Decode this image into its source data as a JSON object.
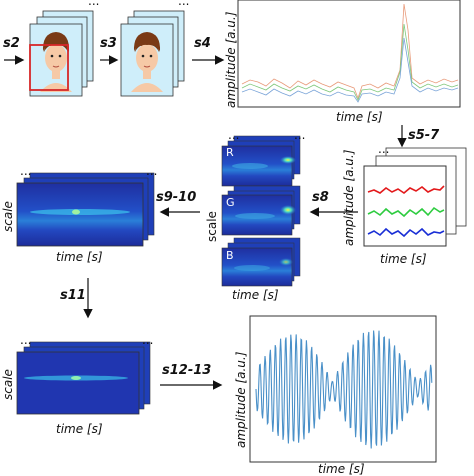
{
  "steps": {
    "s2": "s2",
    "s3": "s3",
    "s4": "s4",
    "s5_7": "s5-7",
    "s8": "s8",
    "s9_10": "s9-10",
    "s11": "s11",
    "s12_13": "s12-13"
  },
  "labels": {
    "amplitude": "amplitude [a.u.]",
    "time": "time [s]",
    "scale": "scale",
    "ellipsis": "...",
    "channels": [
      "R",
      "G",
      "B"
    ]
  },
  "colors": {
    "frame_bg": "#cfeefa",
    "face_box": "#d62728",
    "red": "#e31a1c",
    "green": "#2ecc40",
    "blue": "#1a2fd6",
    "signal": "#4a90c8",
    "scalogram_bg": "#1f3fb8"
  }
}
